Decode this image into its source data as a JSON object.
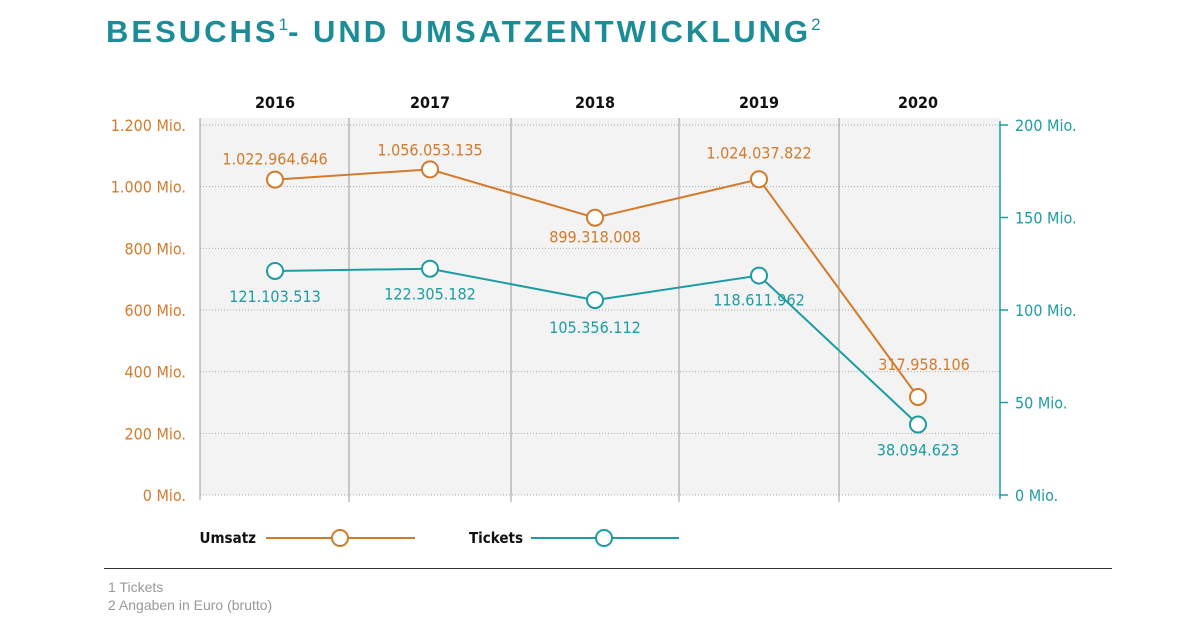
{
  "title": {
    "part1": "BESUCHS",
    "sup1": "1",
    "part2": "- UND UMSATZENTWICKLUNG",
    "sup2": "2"
  },
  "chart_data": {
    "type": "line",
    "categories": [
      "2016",
      "2017",
      "2018",
      "2019",
      "2020"
    ],
    "y_left": {
      "min": 0,
      "max": 1200,
      "ticks": [
        0,
        200,
        400,
        600,
        800,
        1000,
        1200
      ],
      "tick_labels": [
        "0 Mio.",
        "200 Mio.",
        "400 Mio.",
        "600 Mio.",
        "800 Mio.",
        "1.000 Mio.",
        "1.200 Mio."
      ],
      "unit_scale": "Mio."
    },
    "y_right": {
      "min": 0,
      "max": 200,
      "ticks": [
        0,
        50,
        100,
        150,
        200
      ],
      "tick_labels": [
        "0 Mio.",
        "50 Mio.",
        "100 Mio.",
        "150 Mio.",
        "200 Mio."
      ],
      "unit_scale": "Mio."
    },
    "grid": true,
    "legend_placement": "bottom",
    "series": [
      {
        "name": "Umsatz",
        "axis": "left",
        "color": "#d27b2c",
        "values": [
          1022964646,
          1056053135,
          899318008,
          1024037822,
          317958106
        ],
        "labels": [
          "1.022.964.646",
          "1.056.053.135",
          "899.318.008",
          "1.024.037.822",
          "317.958.106"
        ]
      },
      {
        "name": "Tickets",
        "axis": "right",
        "color": "#1d9ca3",
        "values": [
          121103513,
          122305182,
          105356112,
          118611962,
          38094623
        ],
        "labels": [
          "121.103.513",
          "122.305.182",
          "105.356.112",
          "118.611.962",
          "38.094.623"
        ]
      }
    ]
  },
  "footnotes": [
    "1 Tickets",
    "2 Angaben in Euro (brutto)"
  ]
}
